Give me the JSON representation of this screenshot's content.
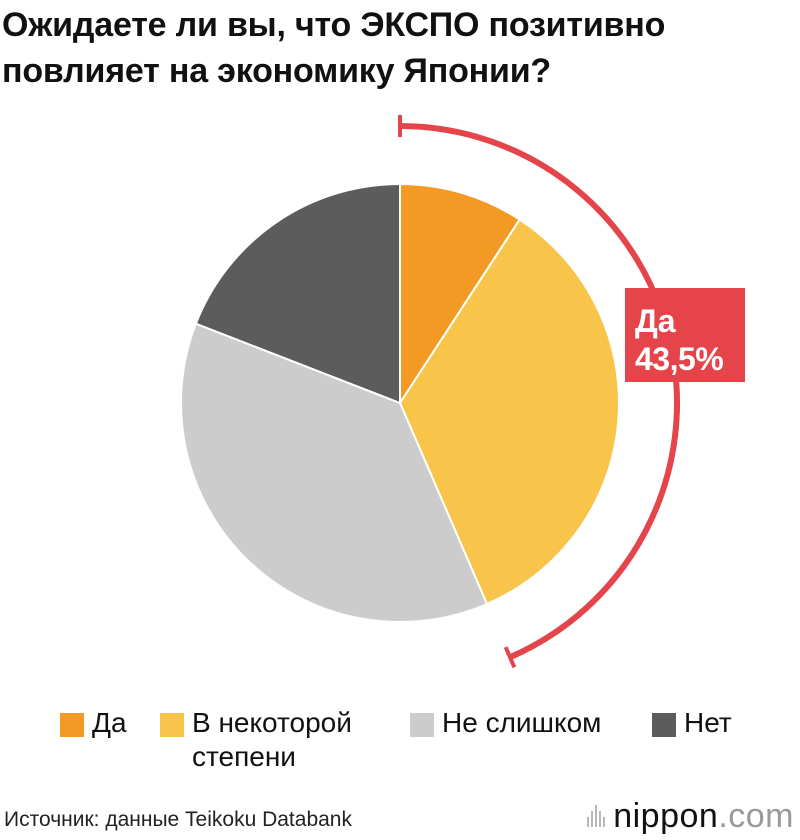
{
  "title": {
    "line1": "Ожидаете ли вы, что ЭКСПО позитивно",
    "line2": "повлияет на экономику Японии?"
  },
  "chart_data": {
    "type": "pie",
    "title": "Ожидаете ли вы, что ЭКСПО позитивно повлияет на экономику Японии?",
    "categories": [
      "Да",
      "В некоторой степени",
      "Не слишком",
      "Нет"
    ],
    "values": [
      9.2,
      34.3,
      37.4,
      19.1
    ],
    "units": "%",
    "colors": [
      "#f39a25",
      "#f8c54a",
      "#cccccc",
      "#5c5c5c"
    ],
    "start_angle_deg": 0,
    "direction": "clockwise",
    "annotation": {
      "label": "Да",
      "value": "43,5%",
      "spans_categories": [
        "Да",
        "В некоторой степени"
      ],
      "color": "#e5444b"
    },
    "legend_position": "bottom"
  },
  "legend": [
    {
      "label": "Да",
      "color": "#f39a25"
    },
    {
      "label": "В некоторой степени",
      "color": "#f8c54a"
    },
    {
      "label": "Не слишком",
      "color": "#cccccc"
    },
    {
      "label": "Нет",
      "color": "#5c5c5c"
    }
  ],
  "source": "Источник: данные Teikoku Databank",
  "brand": {
    "main": "nippon",
    "suffix": ".com"
  }
}
